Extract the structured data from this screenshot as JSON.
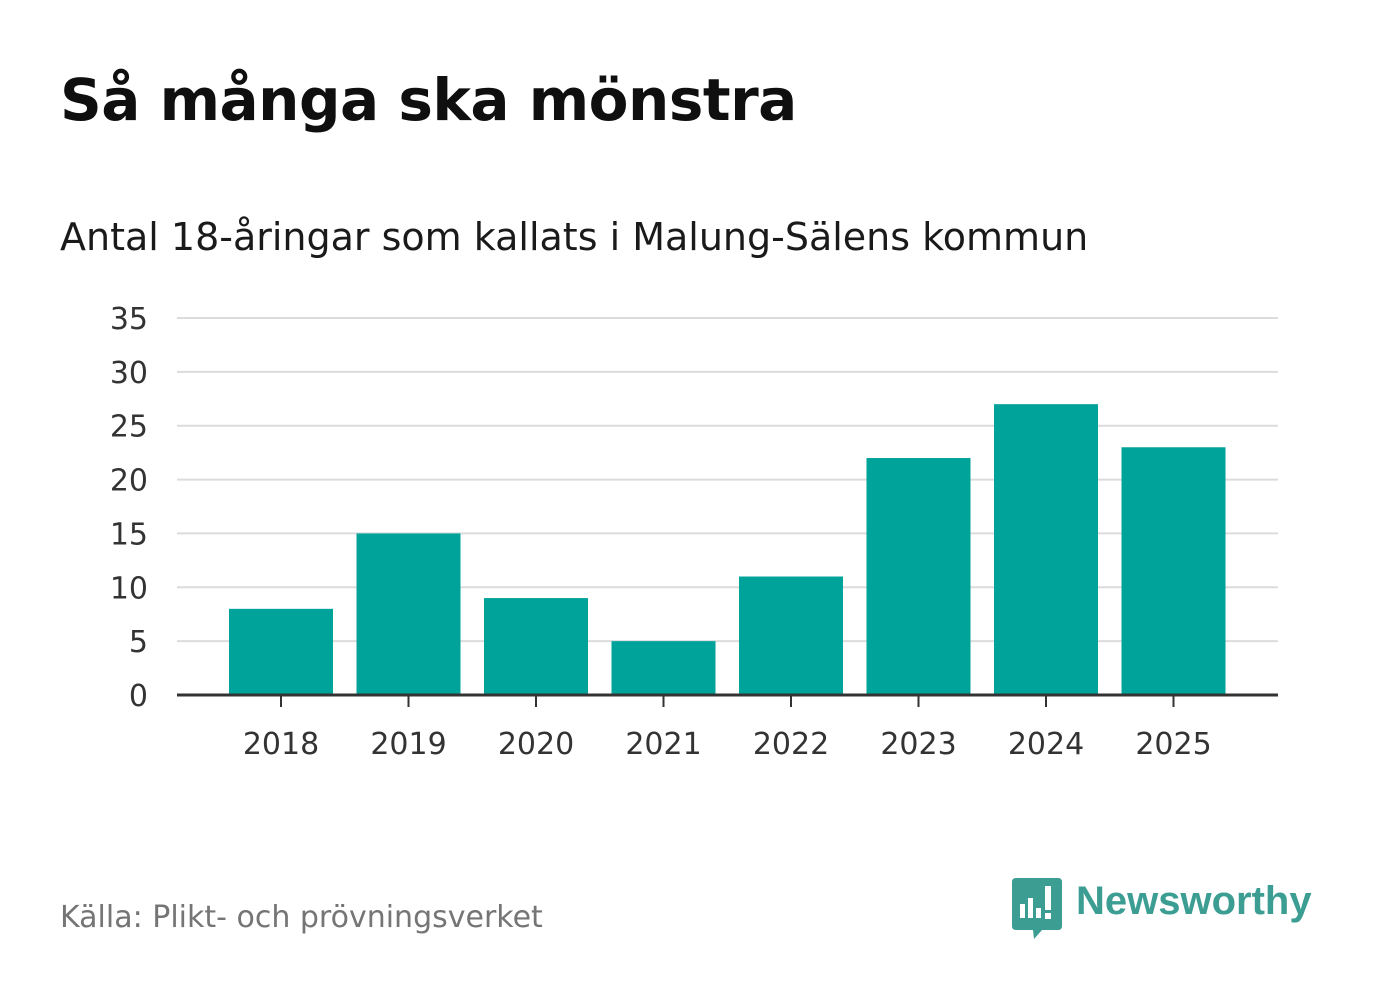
{
  "header": {
    "title": "Så många ska mönstra",
    "subtitle": "Antal 18-åringar som kallats i Malung-Sälens kommun"
  },
  "footer": {
    "source": "Källa: Plikt- och prövningsverket",
    "brand_name": "Newsworthy",
    "brand_icon": "newsworthy-logo-icon"
  },
  "colors": {
    "bar": "#00a39a",
    "grid": "#dcdcdc",
    "axis": "#333333",
    "brand": "#3c9d93"
  },
  "chart_data": {
    "type": "bar",
    "title": "Så många ska mönstra",
    "subtitle": "Antal 18-åringar som kallats i Malung-Sälens kommun",
    "xlabel": "",
    "ylabel": "",
    "categories": [
      "2018",
      "2019",
      "2020",
      "2021",
      "2022",
      "2023",
      "2024",
      "2025"
    ],
    "values": [
      8,
      15,
      9,
      5,
      11,
      22,
      27,
      23
    ],
    "ylim": [
      0,
      35
    ],
    "yticks": [
      0,
      5,
      10,
      15,
      20,
      25,
      30,
      35
    ],
    "grid": true,
    "legend": "none"
  }
}
